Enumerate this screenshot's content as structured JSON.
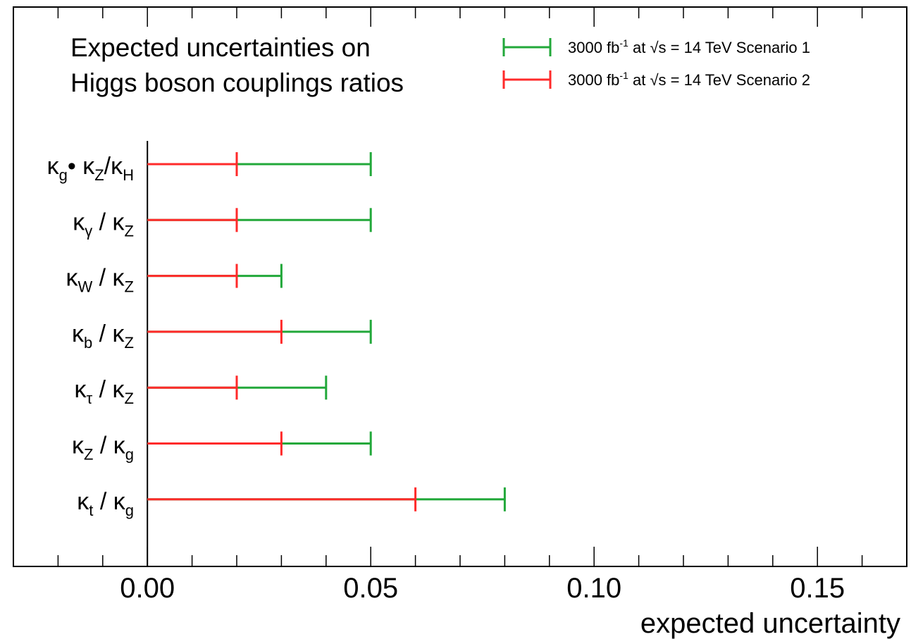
{
  "chart_data": {
    "type": "errorbar",
    "title_lines": [
      "Expected uncertainties on",
      "Higgs boson couplings ratios"
    ],
    "xlabel": "expected uncertainty",
    "xlim": [
      -0.03,
      0.17
    ],
    "xticks": [
      "0.00",
      "0.05",
      "0.10",
      "0.15"
    ],
    "xtick_values": [
      0,
      0.05,
      0.1,
      0.15
    ],
    "grid": false,
    "legend_position": "top-right",
    "categories": [
      {
        "base": "κ",
        "sub": "g",
        "mid": "• κ",
        "mid_sub": "Z",
        "tail": "/κ",
        "tail_sub": "H"
      },
      {
        "base": "κ",
        "sub": "γ",
        "mid": " / κ",
        "mid_sub": "Z"
      },
      {
        "base": "κ",
        "sub": "W",
        "mid": " / κ",
        "mid_sub": "Z"
      },
      {
        "base": "κ",
        "sub": "b",
        "mid": " / κ",
        "mid_sub": "Z"
      },
      {
        "base": "κ",
        "sub": "τ",
        "mid": " / κ",
        "mid_sub": "Z"
      },
      {
        "base": "κ",
        "sub": "Z",
        "mid": " / κ",
        "mid_sub": "g"
      },
      {
        "base": "κ",
        "sub": "t",
        "mid": " / κ",
        "mid_sub": "g"
      }
    ],
    "series": [
      {
        "name": "3000 fb⁻¹ at √s = 14 TeV Scenario 1",
        "legend": {
          "lumi": "3000 fb",
          "exp": "-1",
          "at": " at ",
          "root": "√s",
          "rest": " = 14 TeV Scenario 1"
        },
        "color": "#22a83a",
        "values": [
          0.05,
          0.05,
          0.03,
          0.05,
          0.04,
          0.05,
          0.08
        ]
      },
      {
        "name": "3000 fb⁻¹ at √s = 14 TeV Scenario 2",
        "legend": {
          "lumi": "3000 fb",
          "exp": "-1",
          "at": " at ",
          "root": "√s",
          "rest": " = 14 TeV Scenario 2"
        },
        "color": "#ff2a2a",
        "values": [
          0.02,
          0.02,
          0.02,
          0.03,
          0.02,
          0.03,
          0.06
        ]
      }
    ]
  }
}
